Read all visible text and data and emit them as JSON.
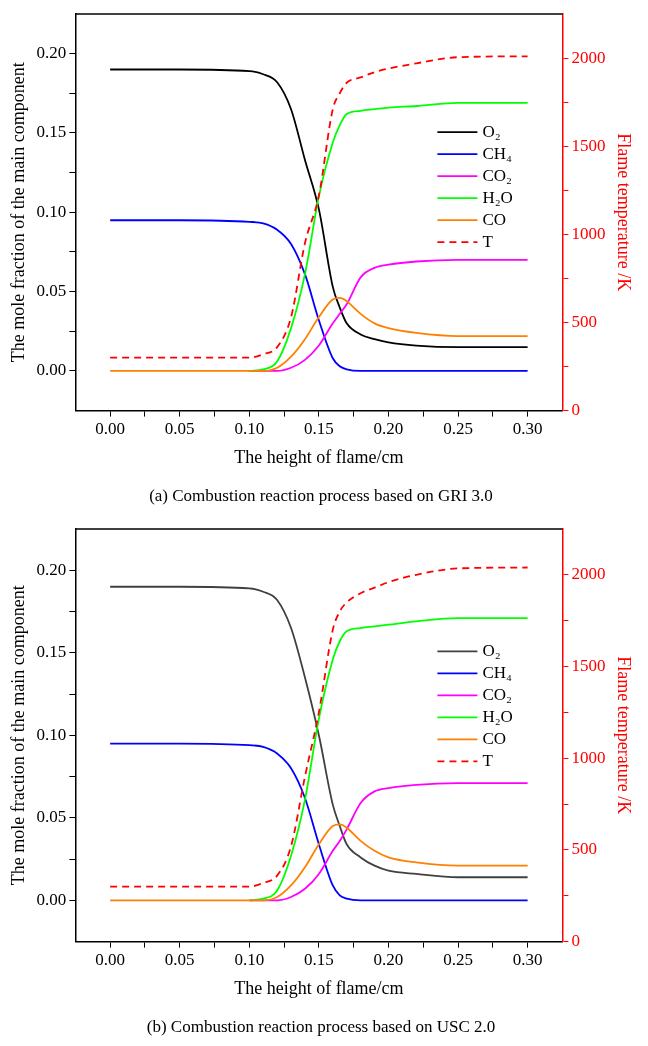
{
  "chart_data": [
    {
      "type": "line",
      "title": "(a) Combustion reaction process based on GRI 3.0",
      "xlabel": "The height of flame/cm",
      "ylabel": "The mole fraction of the main component",
      "y2label": "Flame temperature /K",
      "x": [
        0,
        0.05,
        0.1,
        0.11,
        0.12,
        0.13,
        0.14,
        0.15,
        0.16,
        0.165,
        0.17,
        0.18,
        0.19,
        0.2,
        0.22,
        0.25,
        0.3
      ],
      "xlim": [
        -0.025,
        0.325
      ],
      "xticks": [
        {
          "value": 0,
          "label": "0.00"
        },
        {
          "value": 0.025,
          "label": null
        },
        {
          "value": 0.05,
          "label": "0.05"
        },
        {
          "value": 0.075,
          "label": null
        },
        {
          "value": 0.1,
          "label": "0.10"
        },
        {
          "value": 0.125,
          "label": null
        },
        {
          "value": 0.15,
          "label": "0.15"
        },
        {
          "value": 0.175,
          "label": null
        },
        {
          "value": 0.2,
          "label": "0.20"
        },
        {
          "value": 0.225,
          "label": null
        },
        {
          "value": 0.25,
          "label": "0.25"
        },
        {
          "value": 0.275,
          "label": null
        },
        {
          "value": 0.3,
          "label": "0.30"
        }
      ],
      "ylim": [
        -0.025,
        0.225
      ],
      "yticks": [
        {
          "value": 0,
          "label": "0.00"
        },
        {
          "value": 0.025,
          "label": null
        },
        {
          "value": 0.05,
          "label": "0.05"
        },
        {
          "value": 0.075,
          "label": null
        },
        {
          "value": 0.1,
          "label": "0.10"
        },
        {
          "value": 0.125,
          "label": null
        },
        {
          "value": 0.15,
          "label": "0.15"
        },
        {
          "value": 0.175,
          "label": null
        },
        {
          "value": 0.2,
          "label": "0.20"
        }
      ],
      "y2lim": [
        0,
        2250
      ],
      "y2ticks": [
        0,
        {
          "value": 250,
          "label": null
        },
        500,
        {
          "value": 750,
          "label": null
        },
        1000,
        {
          "value": 1250,
          "label": null
        },
        1500,
        {
          "value": 1750,
          "label": null
        },
        2000
      ],
      "grid": false,
      "legend": "right",
      "marker": "none",
      "series": [
        {
          "name": "O₂",
          "color": "#000000",
          "line_style": "solid",
          "values": [
            0.19,
            0.19,
            0.189,
            0.187,
            0.182,
            0.165,
            0.133,
            0.102,
            0.053,
            0.04,
            0.03,
            0.023,
            0.02,
            0.018,
            0.016,
            0.015,
            0.015
          ]
        },
        {
          "name": "CH₄",
          "color": "#0000ff",
          "line_style": "solid",
          "values": [
            0.095,
            0.095,
            0.094,
            0.093,
            0.089,
            0.08,
            0.061,
            0.032,
            0.008,
            0.003,
            0.001,
            0,
            0,
            0,
            0,
            0,
            0
          ]
        },
        {
          "name": "CO₂",
          "color": "#ff00ff",
          "line_style": "solid",
          "values": [
            null,
            null,
            0,
            0,
            0,
            0.002,
            0.007,
            0.016,
            0.03,
            0.036,
            0.042,
            0.059,
            0.065,
            0.067,
            0.069,
            0.07,
            0.07
          ]
        },
        {
          "name": "H₂O",
          "color": "#00ff00",
          "line_style": "solid",
          "values": [
            null,
            null,
            0,
            0.001,
            0.006,
            0.027,
            0.061,
            0.11,
            0.144,
            0.155,
            0.162,
            0.164,
            0.165,
            0.166,
            0.167,
            0.169,
            0.169
          ]
        },
        {
          "name": "CO",
          "color": "#ff8000",
          "line_style": "solid",
          "values": [
            0,
            0,
            0,
            0,
            0.002,
            0.009,
            0.02,
            0.034,
            0.045,
            0.046,
            0.044,
            0.036,
            0.03,
            0.027,
            0.024,
            0.022,
            0.022
          ]
        },
        {
          "name": "T",
          "color": "#ff0000",
          "line_style": "dashed",
          "axis": "y2",
          "values": [
            300,
            300,
            300,
            320,
            360,
            530,
            950,
            1220,
            1710,
            1800,
            1860,
            1890,
            1920,
            1940,
            1970,
            2005,
            2010
          ]
        }
      ]
    },
    {
      "type": "line",
      "title": "(b) Combustion reaction process based on USC 2.0",
      "xlabel": "The height of flame/cm",
      "ylabel": "The mole fraction of the main component",
      "y2label": "Flame temperature /K",
      "x": [
        0,
        0.05,
        0.1,
        0.11,
        0.12,
        0.13,
        0.14,
        0.15,
        0.16,
        0.165,
        0.17,
        0.18,
        0.19,
        0.2,
        0.22,
        0.25,
        0.3
      ],
      "xlim": [
        -0.025,
        0.325
      ],
      "xticks": [
        {
          "value": 0,
          "label": "0.00"
        },
        {
          "value": 0.025,
          "label": null
        },
        {
          "value": 0.05,
          "label": "0.05"
        },
        {
          "value": 0.075,
          "label": null
        },
        {
          "value": 0.1,
          "label": "0.10"
        },
        {
          "value": 0.125,
          "label": null
        },
        {
          "value": 0.15,
          "label": "0.15"
        },
        {
          "value": 0.175,
          "label": null
        },
        {
          "value": 0.2,
          "label": "0.20"
        },
        {
          "value": 0.225,
          "label": null
        },
        {
          "value": 0.25,
          "label": "0.25"
        },
        {
          "value": 0.275,
          "label": null
        },
        {
          "value": 0.3,
          "label": "0.30"
        }
      ],
      "ylim": [
        -0.025,
        0.225
      ],
      "yticks": [
        {
          "value": 0,
          "label": "0.00"
        },
        {
          "value": 0.025,
          "label": null
        },
        {
          "value": 0.05,
          "label": "0.05"
        },
        {
          "value": 0.075,
          "label": null
        },
        {
          "value": 0.1,
          "label": "0.10"
        },
        {
          "value": 0.125,
          "label": null
        },
        {
          "value": 0.15,
          "label": "0.15"
        },
        {
          "value": 0.175,
          "label": null
        },
        {
          "value": 0.2,
          "label": "0.20"
        }
      ],
      "y2lim": [
        0,
        2250
      ],
      "y2ticks": [
        0,
        {
          "value": 250,
          "label": null
        },
        500,
        {
          "value": 750,
          "label": null
        },
        1000,
        {
          "value": 1250,
          "label": null
        },
        1500,
        {
          "value": 1750,
          "label": null
        },
        2000
      ],
      "grid": false,
      "legend": "right",
      "marker": "none",
      "series": [
        {
          "name": "O₂",
          "color": "#404040",
          "line_style": "solid",
          "values": [
            0.19,
            0.19,
            0.189,
            0.187,
            0.182,
            0.165,
            0.135,
            0.1,
            0.058,
            0.045,
            0.034,
            0.026,
            0.021,
            0.018,
            0.016,
            0.014,
            0.014
          ]
        },
        {
          "name": "CH₄",
          "color": "#0000ff",
          "line_style": "solid",
          "values": [
            0.095,
            0.095,
            0.094,
            0.093,
            0.089,
            0.08,
            0.062,
            0.034,
            0.009,
            0.003,
            0.001,
            0,
            0,
            0,
            0,
            0,
            0
          ]
        },
        {
          "name": "CO₂",
          "color": "#ff00ff",
          "line_style": "solid",
          "values": [
            null,
            null,
            0,
            0,
            0,
            0.002,
            0.007,
            0.016,
            0.03,
            0.036,
            0.043,
            0.059,
            0.066,
            0.068,
            0.07,
            0.071,
            0.071
          ]
        },
        {
          "name": "H₂O",
          "color": "#00ff00",
          "line_style": "solid",
          "values": [
            null,
            null,
            0,
            0.001,
            0.006,
            0.027,
            0.061,
            0.11,
            0.146,
            0.157,
            0.163,
            0.165,
            0.166,
            0.167,
            0.169,
            0.171,
            0.171
          ]
        },
        {
          "name": "CO",
          "color": "#ff8000",
          "line_style": "solid",
          "values": [
            0,
            0,
            0,
            0,
            0.002,
            0.009,
            0.02,
            0.034,
            0.045,
            0.046,
            0.044,
            0.036,
            0.03,
            0.026,
            0.023,
            0.021,
            0.021
          ]
        },
        {
          "name": "T",
          "color": "#ff0000",
          "line_style": "dashed",
          "axis": "y2",
          "values": [
            300,
            300,
            300,
            320,
            360,
            520,
            900,
            1250,
            1700,
            1800,
            1850,
            1900,
            1930,
            1960,
            2000,
            2035,
            2040
          ]
        }
      ]
    }
  ]
}
